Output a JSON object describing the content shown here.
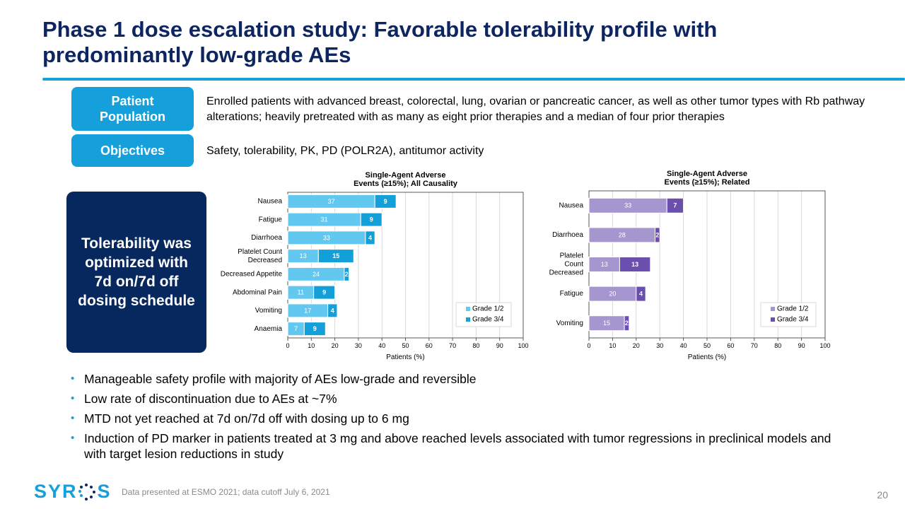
{
  "slide": {
    "title": "Phase 1 dose escalation study: Favorable tolerability profile with predominantly low-grade AEs",
    "page_number": "20",
    "footnote": "Data presented at ESMO 2021; data cutoff July 6, 2021",
    "logo_text": {
      "left": "SYR",
      "right": "S"
    }
  },
  "info": {
    "patient_population_label": "Patient\nPopulation",
    "patient_population_text": "Enrolled patients with advanced breast, colorectal, lung, ovarian or pancreatic cancer, as well as other tumor types with Rb pathway alterations; heavily pretreated with as many as eight prior therapies and a median of four prior therapies",
    "objectives_label": "Objectives",
    "objectives_text": "Safety, tolerability, PK, PD (POLR2A), antitumor activity"
  },
  "callout": {
    "text": "Tolerability was\noptimized with\n7d on/7d off\ndosing schedule"
  },
  "bullets": [
    "Manageable safety profile with majority of AEs low-grade and reversible",
    "Low rate of discontinuation due to AEs at ~7%",
    "MTD not yet reached at 7d on/7d off with dosing up to 6 mg",
    "Induction of PD marker in patients treated at 3 mg and above reached levels associated with tumor regressions in preclinical models and with target lesion reductions in study"
  ],
  "chart_data": [
    {
      "type": "bar",
      "orientation": "horizontal",
      "stacked": true,
      "title": "Single-Agent Adverse\nEvents (≥15%); All Causality",
      "xlabel": "Patients (%)",
      "ylabel": "",
      "xlim": [
        0,
        100
      ],
      "xticks": [
        0,
        10,
        20,
        30,
        40,
        50,
        60,
        70,
        80,
        90,
        100
      ],
      "grid": true,
      "legend_position": "bottom-right",
      "categories": [
        "Nausea",
        "Fatigue",
        "Diarrhoea",
        "Platelet Count\nDecreased",
        "Decreased Appetite",
        "Abdominal Pain",
        "Vomiting",
        "Anaemia"
      ],
      "series": [
        {
          "name": "Grade 1/2",
          "color": "#63c8f0",
          "values": [
            37,
            31,
            33,
            13,
            24,
            11,
            17,
            7
          ]
        },
        {
          "name": "Grade 3/4",
          "color": "#139fd7",
          "values": [
            9,
            9,
            4,
            15,
            2,
            9,
            4,
            9
          ]
        }
      ]
    },
    {
      "type": "bar",
      "orientation": "horizontal",
      "stacked": true,
      "title": "Single-Agent Adverse\nEvents (≥15%); Related",
      "xlabel": "Patients (%)",
      "ylabel": "",
      "xlim": [
        0,
        100
      ],
      "xticks": [
        0,
        10,
        20,
        30,
        40,
        50,
        60,
        70,
        80,
        90,
        100
      ],
      "grid": true,
      "legend_position": "bottom-right",
      "categories": [
        "Nausea",
        "Diarrhoea",
        "Platelet\nCount\nDecreased",
        "Fatigue",
        "Vomiting"
      ],
      "series": [
        {
          "name": "Grade 1/2",
          "color": "#a596cf",
          "values": [
            33,
            28,
            13,
            20,
            15
          ]
        },
        {
          "name": "Grade 3/4",
          "color": "#6a4fae",
          "values": [
            7,
            2,
            13,
            4,
            2
          ]
        }
      ]
    }
  ]
}
